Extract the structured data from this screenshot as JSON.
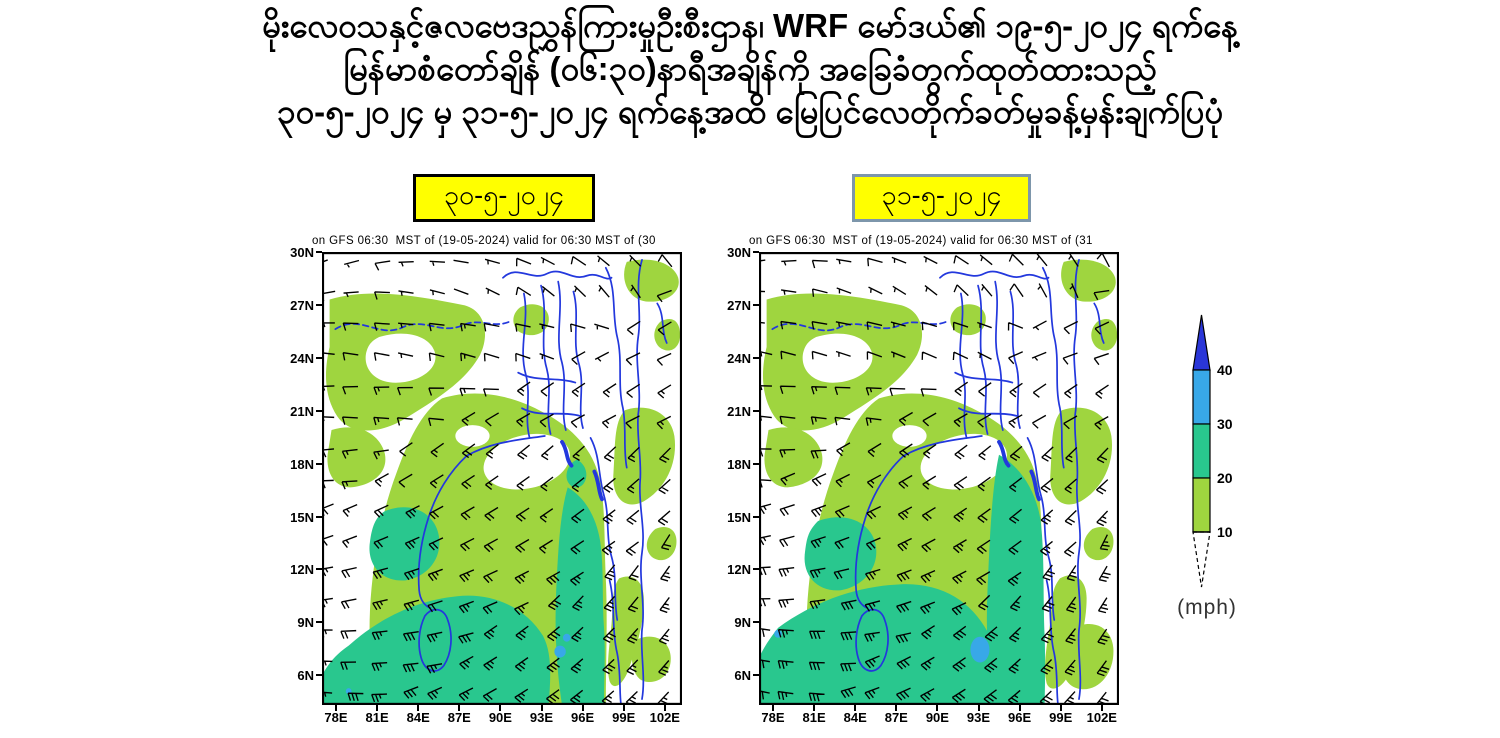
{
  "title": {
    "line1": "မိုးလေဝသနှင့်ဇလဗေဒညွှန်ကြားမှုဦးစီးဌာန၊ WRF မော်ဒယ်၏  ၁၉-၅-၂၀၂၄  ရက်နေ့",
    "line2": "မြန်မာစံတော်ချိန် (၀၆:၃၀)နာရီအချိန်ကို အခြေခံတွက်ထုတ်ထားသည့်",
    "line3": "၃၀-၅-၂၀၂၄  မှ ၃၁-၅-၂၀၂၄ ရက်နေ့အထိ မြေပြင်လေတိုက်ခတ်မှုခန့်မှန်းချက်ပြပုံ"
  },
  "badge_bg": "#ffff00",
  "maps": [
    {
      "date_label": "၃၀-၅-၂၀၂၄",
      "header": "on GFS 06:30  MST of (19-05-2024) valid for 06:30 MST of (30",
      "y_ticks": [
        "30N",
        "27N",
        "24N",
        "21N",
        "18N",
        "15N",
        "12N",
        "9N",
        "6N"
      ],
      "x_ticks": [
        "78E",
        "81E",
        "84E",
        "87E",
        "90E",
        "93E",
        "96E",
        "99E",
        "102E"
      ],
      "wind_bands": [
        {
          "until": 1,
          "dir": 290,
          "spd": 6,
          "veer": 0,
          "jit": 40
        },
        {
          "until": 3,
          "dir": 270,
          "spd": 9,
          "veer": -2,
          "jit": 25
        },
        {
          "until": 5,
          "dir": 255,
          "spd": 12,
          "veer": -2,
          "jit": 18
        },
        {
          "until": 7,
          "dir": 240,
          "spd": 16,
          "veer": -3,
          "jit": 12
        },
        {
          "until": 9,
          "dir": 240,
          "spd": 20,
          "veer": -3,
          "jit": 10
        },
        {
          "until": 11,
          "dir": 242,
          "spd": 24,
          "veer": -3.5,
          "jit": 8
        },
        {
          "until": 14,
          "dir": 245,
          "spd": 26,
          "veer": -4,
          "jit": 8
        }
      ]
    },
    {
      "date_label": "၃၁-၅-၂၀၂၄",
      "header": "on GFS 06:30  MST of (19-05-2024) valid for 06:30 MST of (31",
      "y_ticks": [
        "30N",
        "27N",
        "24N",
        "21N",
        "18N",
        "15N",
        "12N",
        "9N",
        "6N"
      ],
      "x_ticks": [
        "78E",
        "81E",
        "84E",
        "87E",
        "90E",
        "93E",
        "96E",
        "99E",
        "102E"
      ],
      "wind_bands": [
        {
          "until": 1,
          "dir": 300,
          "spd": 6,
          "veer": 0,
          "jit": 40
        },
        {
          "until": 3,
          "dir": 275,
          "spd": 9,
          "veer": -2,
          "jit": 25
        },
        {
          "until": 5,
          "dir": 255,
          "spd": 13,
          "veer": -2.5,
          "jit": 18
        },
        {
          "until": 7,
          "dir": 242,
          "spd": 17,
          "veer": -3.5,
          "jit": 12
        },
        {
          "until": 9,
          "dir": 240,
          "spd": 22,
          "veer": -4,
          "jit": 10
        },
        {
          "until": 11,
          "dir": 243,
          "spd": 26,
          "veer": -4.5,
          "jit": 8
        },
        {
          "until": 14,
          "dir": 246,
          "spd": 28,
          "veer": -5,
          "jit": 8
        }
      ]
    }
  ],
  "legend": {
    "labels": [
      "40",
      "30",
      "20",
      "10"
    ],
    "unit": "(mph)",
    "colors": {
      "gt40": "#2a36d8",
      "b30_40": "#38a8e8",
      "b20_30": "#29c78e",
      "b10_20": "#9fd53f",
      "lt10": "#ffffff",
      "coast": "#2338dd"
    }
  },
  "chart_data": {
    "type": "heatmap",
    "title": "WRF/GFS surface wind speed and wind barbs forecast, Myanmar DMH",
    "panels": [
      {
        "date": "၃၀-၅-၂၀၂၄",
        "header": "on GFS 06:30  MST of (19-05-2024) valid for 06:30 MST of (30"
      },
      {
        "date": "၃၁-၅-၂၀၂၄",
        "header": "on GFS 06:30  MST of (19-05-2024) valid for 06:30 MST of (31"
      }
    ],
    "x_ticks": [
      "78E",
      "81E",
      "84E",
      "87E",
      "90E",
      "93E",
      "96E",
      "99E",
      "102E"
    ],
    "y_ticks": [
      "30N",
      "27N",
      "24N",
      "21N",
      "18N",
      "15N",
      "12N",
      "9N",
      "6N"
    ],
    "x_range_deg_east": [
      77,
      103
    ],
    "y_range_deg_north": [
      4,
      30
    ],
    "legend_bins_mph": [
      10,
      20,
      30,
      40
    ],
    "legend_bin_colors": [
      "#ffffff",
      "#9fd53f",
      "#29c78e",
      "#38a8e8",
      "#2a36d8"
    ],
    "legend_unit": "(mph)",
    "summary": "Winds below 10 mph over northern inland areas; 10-20 mph (yellow-green) over central Bay of Bengal and inland patches; 20-30 mph (teal) over southern Bay of Bengal extending along Myanmar coast, stronger and wider on 31-5-2024; isolated 30-40 mph (blue) cells near 9N 93-95E."
  }
}
